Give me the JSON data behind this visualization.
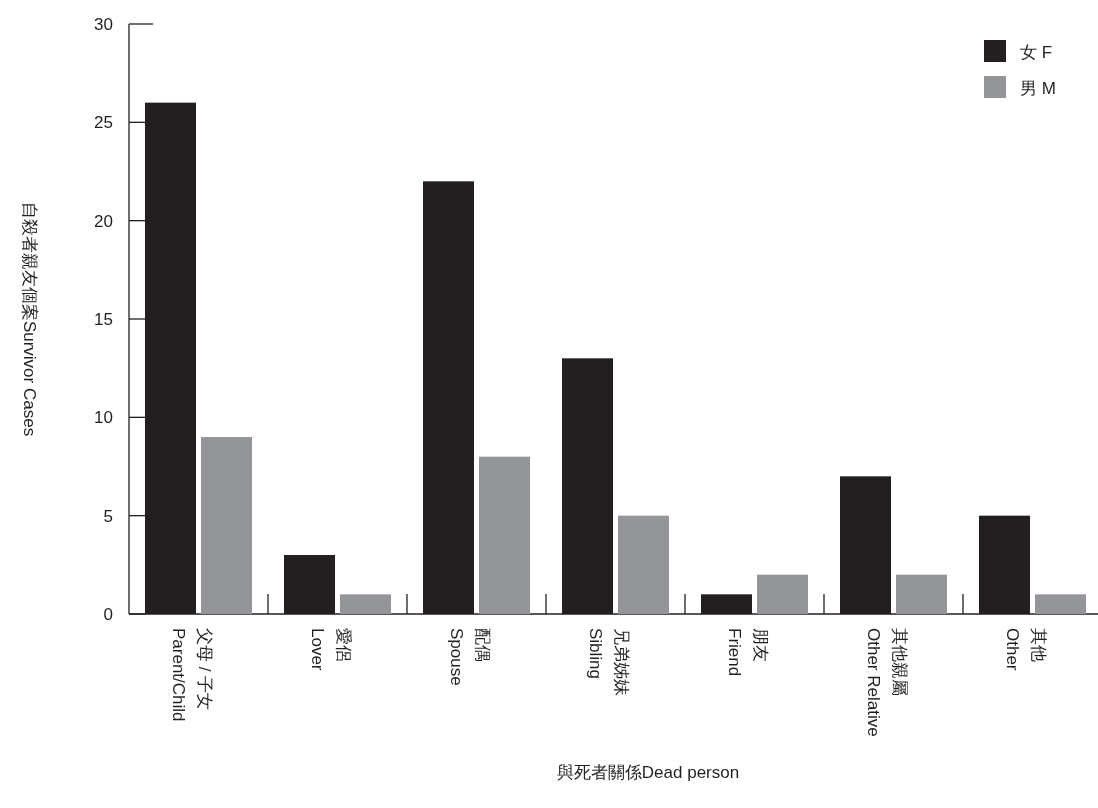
{
  "chart_data": {
    "type": "bar",
    "xlabel": "與死者關係Dead person",
    "ylabel": "自殺者親友個案Survivor Cases",
    "categories": [
      "父母 / 子女\nParent/Child",
      "愛侶\nLover",
      "配偶\nSpouse",
      "兄弟姊妹\nSibling",
      "朋友\nFriend",
      "其他親屬\nOther Relative",
      "其他\nOther"
    ],
    "series": [
      {
        "name": "女 F",
        "color": "#231f20",
        "values": [
          26,
          3,
          22,
          13,
          1,
          7,
          5
        ]
      },
      {
        "name": "男 M",
        "color": "#939598",
        "values": [
          9,
          1,
          8,
          5,
          2,
          2,
          1
        ]
      }
    ],
    "ylim": [
      0,
      30
    ],
    "yticks": [
      0,
      5,
      10,
      15,
      20,
      25,
      30
    ],
    "grid": false,
    "legend": "top right"
  }
}
